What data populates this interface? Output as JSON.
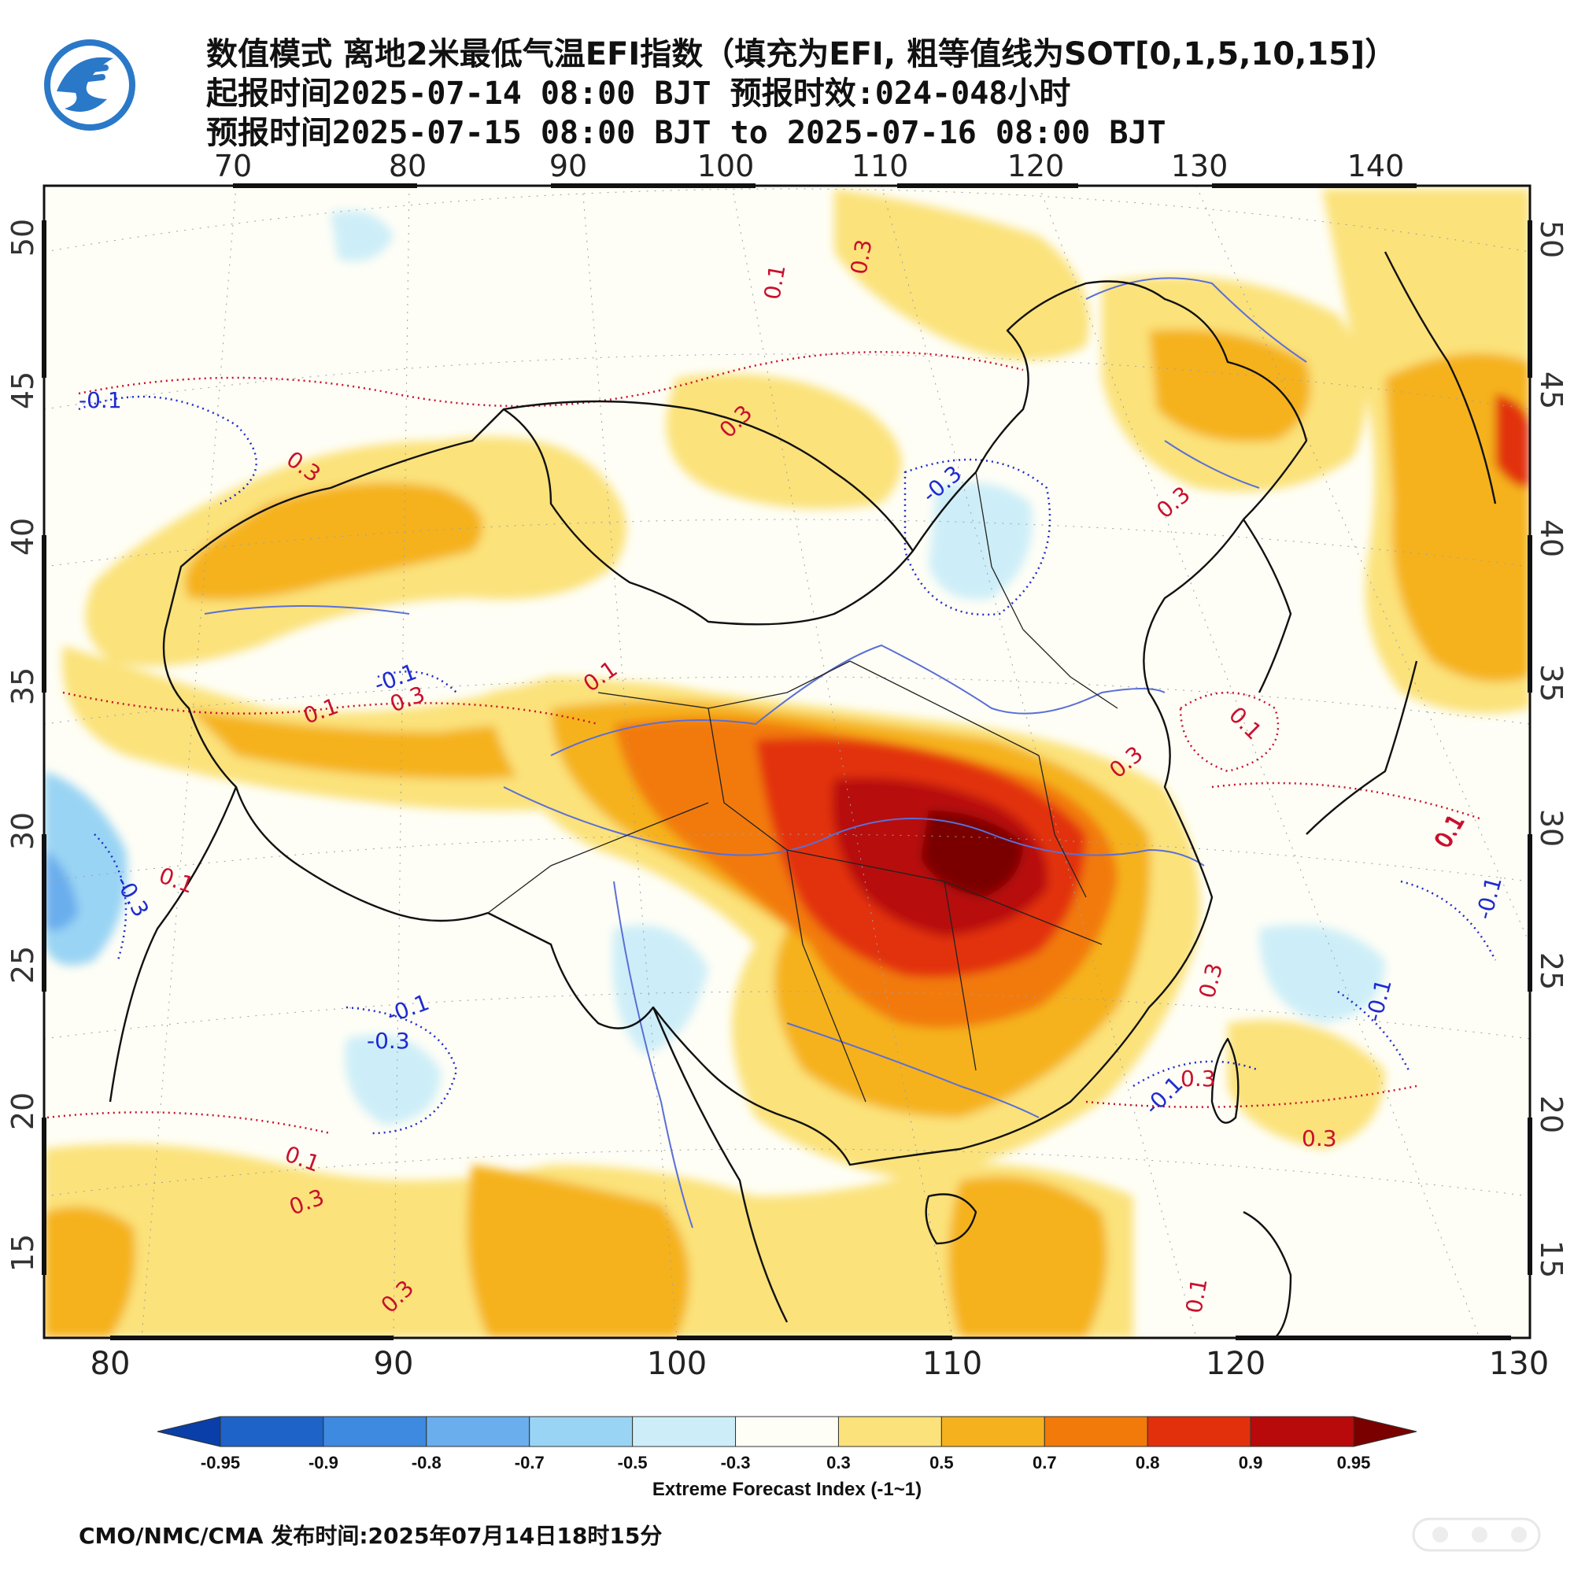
{
  "header": {
    "title": "数值模式 离地2米最低气温EFI指数（填充为EFI, 粗等值线为SOT[0,1,5,10,15]）",
    "init_time": "起报时间2025-07-14 08:00 BJT 预报时效:024-048小时",
    "valid_time": "预报时间2025-07-15 08:00 BJT to 2025-07-16 08:00 BJT"
  },
  "map": {
    "top_lon_labels": [
      "70",
      "80",
      "90",
      "100",
      "110",
      "120",
      "130",
      "140"
    ],
    "bottom_lon_labels": [
      "80",
      "90",
      "100",
      "110",
      "120",
      "130"
    ],
    "left_lat_labels": [
      "50",
      "45",
      "40",
      "35",
      "30",
      "25",
      "20",
      "15"
    ],
    "right_lat_labels": [
      "50",
      "45",
      "40",
      "35",
      "30",
      "25",
      "20",
      "15"
    ],
    "contour_labels": [
      {
        "text": "-0.1",
        "color": "blue"
      },
      {
        "text": "0.3",
        "color": "red"
      },
      {
        "text": "0.1",
        "color": "red"
      },
      {
        "text": "0.3",
        "color": "red"
      },
      {
        "text": "0.3",
        "color": "red"
      },
      {
        "text": "0.3",
        "color": "red"
      },
      {
        "text": "-0.3",
        "color": "blue"
      },
      {
        "text": "0.3",
        "color": "red"
      },
      {
        "text": "0.1",
        "color": "red"
      },
      {
        "text": "-0.1",
        "color": "blue"
      },
      {
        "text": "0.1",
        "color": "red"
      },
      {
        "text": "0.3",
        "color": "red"
      },
      {
        "text": "0.1",
        "color": "red"
      },
      {
        "text": "0.3",
        "color": "red"
      },
      {
        "text": "0.1",
        "color": "red"
      },
      {
        "text": "-0.3",
        "color": "blue"
      },
      {
        "text": "0.1",
        "color": "red"
      },
      {
        "text": "-0.1",
        "color": "blue"
      },
      {
        "text": "-0.3",
        "color": "blue"
      },
      {
        "text": "0.1",
        "color": "red"
      },
      {
        "text": "0.3",
        "color": "red"
      },
      {
        "text": "0.3",
        "color": "red"
      },
      {
        "text": "-0.1",
        "color": "blue"
      },
      {
        "text": "0.3",
        "color": "red"
      },
      {
        "text": "0.1",
        "color": "red"
      },
      {
        "text": "-0.1",
        "color": "blue"
      },
      {
        "text": "-0.1",
        "color": "blue"
      },
      {
        "text": "0.3",
        "color": "red"
      },
      {
        "text": "0.1",
        "color": "red"
      }
    ],
    "colors": {
      "boundary": "#111111",
      "river": "#5a6fd6",
      "positive_contour": "#c8102e",
      "negative_contour": "#1e2bd0"
    }
  },
  "colorbar": {
    "ticks": [
      "-0.95",
      "-0.9",
      "-0.8",
      "-0.7",
      "-0.5",
      "-0.3",
      "0.3",
      "0.5",
      "0.7",
      "0.8",
      "0.9",
      "0.95"
    ],
    "colors": [
      "#0a3ea8",
      "#1e63c8",
      "#3d8ae0",
      "#6aaeee",
      "#9ad4f4",
      "#cdeef8",
      "#fefef6",
      "#fbe27a",
      "#f5b21e",
      "#f27a0a",
      "#e2300c",
      "#b80a0a",
      "#7a0000"
    ],
    "title": "Extreme Forecast Index (-1~1)"
  },
  "footer": {
    "text": "CMO/NMC/CMA 发布时间:2025年07月14日18时15分"
  }
}
